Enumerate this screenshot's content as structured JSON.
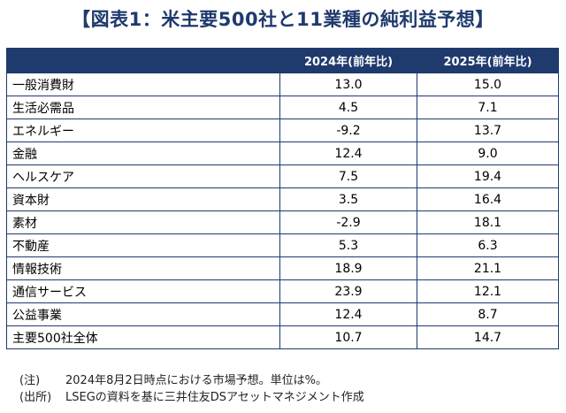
{
  "title": "【図表1：米主要500社と11業種の純利益予想】",
  "table": {
    "columns": [
      "",
      "2024年(前年比)",
      "2025年(前年比)"
    ],
    "rows": [
      {
        "sector": "一般消費財",
        "y2024": "13.0",
        "y2025": "15.0"
      },
      {
        "sector": "生活必需品",
        "y2024": "4.5",
        "y2025": "7.1"
      },
      {
        "sector": "エネルギー",
        "y2024": "-9.2",
        "y2025": "13.7"
      },
      {
        "sector": "金融",
        "y2024": "12.4",
        "y2025": "9.0"
      },
      {
        "sector": "ヘルスケア",
        "y2024": "7.5",
        "y2025": "19.4"
      },
      {
        "sector": "資本財",
        "y2024": "3.5",
        "y2025": "16.4"
      },
      {
        "sector": "素材",
        "y2024": "-2.9",
        "y2025": "18.1"
      },
      {
        "sector": "不動産",
        "y2024": "5.3",
        "y2025": "6.3"
      },
      {
        "sector": "情報技術",
        "y2024": "18.9",
        "y2025": "21.1"
      },
      {
        "sector": "通信サービス",
        "y2024": "23.9",
        "y2025": "12.1"
      },
      {
        "sector": "公益事業",
        "y2024": "12.4",
        "y2025": "8.7"
      },
      {
        "sector": "主要500社全体",
        "y2024": "10.7",
        "y2025": "14.7"
      }
    ]
  },
  "notes": [
    {
      "tag": "(注)",
      "text": "2024年8月2日時点における市場予想。単位は%。"
    },
    {
      "tag": "(出所)",
      "text": "LSEGの資料を基に三井住友DSアセットマネジメント作成"
    }
  ],
  "colors": {
    "header_bg": "#1f3a6d",
    "title": "#1f3a6d",
    "border": "#1f3a6d"
  }
}
